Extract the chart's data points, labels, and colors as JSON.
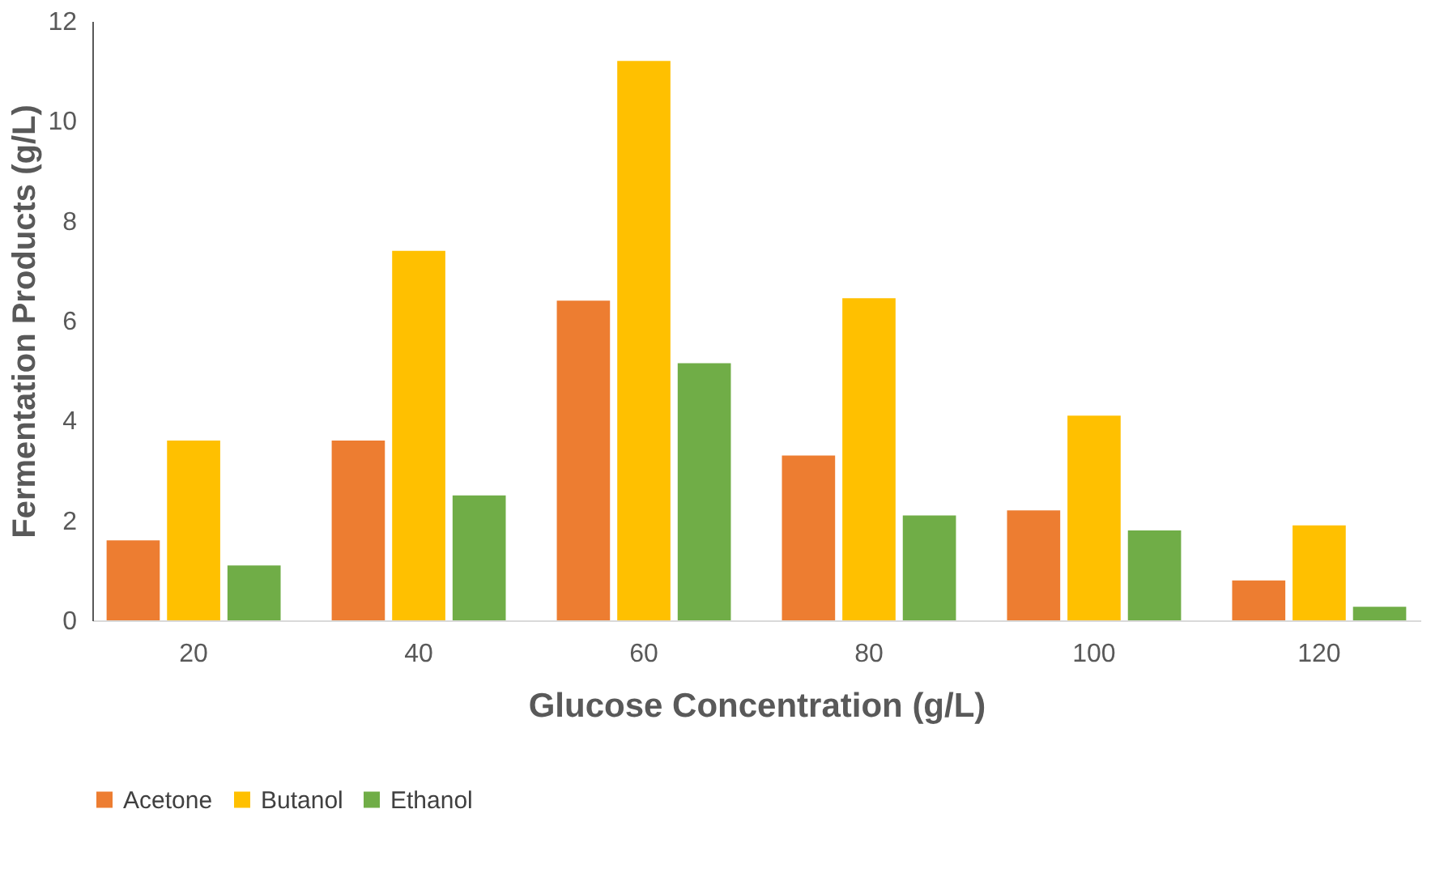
{
  "chart_data": {
    "type": "bar",
    "xlabel": "Glucose Concentration (g/L)",
    "ylabel": "Fermentation Products (g/L)",
    "categories": [
      "20",
      "40",
      "60",
      "80",
      "100",
      "120"
    ],
    "series": [
      {
        "name": "Acetone",
        "color": "#ed7d31",
        "values": [
          1.6,
          3.6,
          6.4,
          3.3,
          2.2,
          0.8
        ]
      },
      {
        "name": "Butanol",
        "color": "#ffc000",
        "values": [
          3.6,
          7.4,
          11.2,
          6.45,
          4.1,
          1.9
        ]
      },
      {
        "name": "Ethanol",
        "color": "#70ad47",
        "values": [
          1.1,
          2.5,
          5.15,
          2.1,
          1.8,
          0.27
        ]
      }
    ],
    "ylim": [
      0,
      12
    ],
    "yticks": [
      0,
      2,
      4,
      6,
      8,
      10,
      12
    ],
    "grid": false,
    "legend": "bottom"
  }
}
